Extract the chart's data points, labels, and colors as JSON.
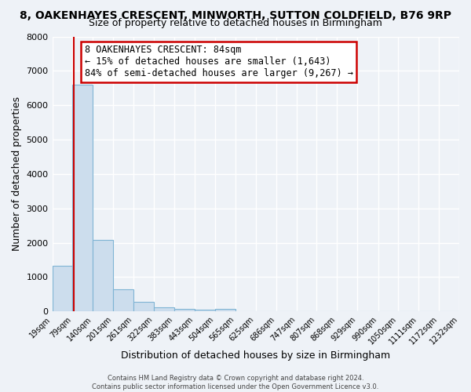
{
  "title": "8, OAKENHAYES CRESCENT, MINWORTH, SUTTON COLDFIELD, B76 9RP",
  "subtitle": "Size of property relative to detached houses in Birmingham",
  "xlabel": "Distribution of detached houses by size in Birmingham",
  "ylabel": "Number of detached properties",
  "bin_labels": [
    "19sqm",
    "79sqm",
    "140sqm",
    "201sqm",
    "261sqm",
    "322sqm",
    "383sqm",
    "443sqm",
    "504sqm",
    "565sqm",
    "625sqm",
    "686sqm",
    "747sqm",
    "807sqm",
    "868sqm",
    "929sqm",
    "990sqm",
    "1050sqm",
    "1111sqm",
    "1172sqm",
    "1232sqm"
  ],
  "bar_heights": [
    1320,
    6600,
    2080,
    650,
    290,
    130,
    80,
    50,
    80,
    0,
    0,
    0,
    0,
    0,
    0,
    0,
    0,
    0,
    0,
    0
  ],
  "bar_color": "#ccdded",
  "bar_edge_color": "#7fb4d4",
  "label_values": [
    19,
    79,
    140,
    201,
    261,
    322,
    383,
    443,
    504,
    565,
    625,
    686,
    747,
    807,
    868,
    929,
    990,
    1050,
    1111,
    1172,
    1232
  ],
  "property_line_x": 84,
  "xmin": 19,
  "xmax": 1232,
  "ymin": 0,
  "ymax": 8000,
  "annotation_title": "8 OAKENHAYES CRESCENT: 84sqm",
  "annotation_line1": "← 15% of detached houses are smaller (1,643)",
  "annotation_line2": "84% of semi-detached houses are larger (9,267) →",
  "annotation_box_color": "#ffffff",
  "annotation_box_edge_color": "#cc0000",
  "red_line_color": "#cc0000",
  "footer_line1": "Contains HM Land Registry data © Crown copyright and database right 2024.",
  "footer_line2": "Contains public sector information licensed under the Open Government Licence v3.0.",
  "bg_color": "#eef2f7",
  "plot_bg_color": "#eef2f7",
  "grid_color": "#ffffff",
  "title_fontsize": 10,
  "subtitle_fontsize": 9,
  "yticks": [
    0,
    1000,
    2000,
    3000,
    4000,
    5000,
    6000,
    7000,
    8000
  ]
}
